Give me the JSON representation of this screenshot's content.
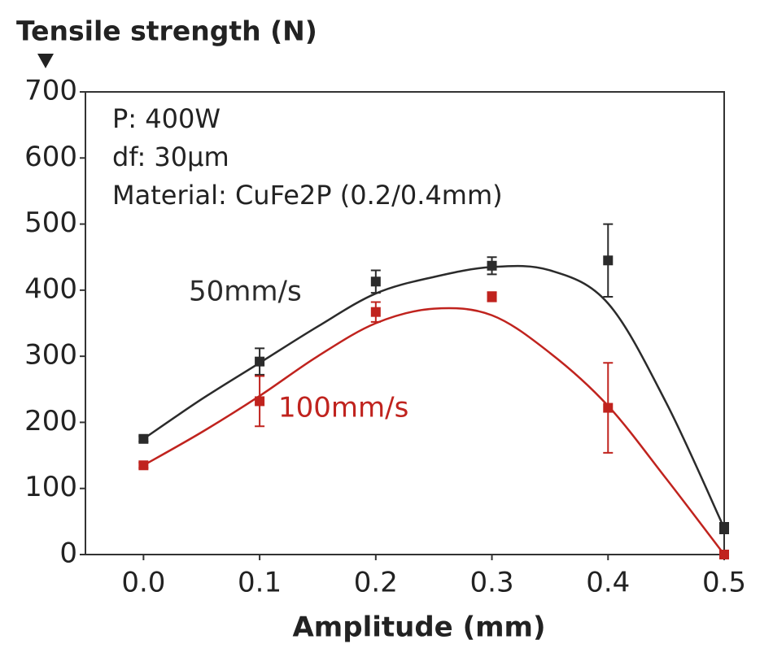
{
  "chart_data": {
    "type": "line",
    "y_label": "Tensile strength (N)",
    "x_label": "Amplitude (mm)",
    "annotations": [
      "P: 400W",
      "df: 30μm",
      "Material: CuFe2P (0.2/0.4mm)"
    ],
    "x": [
      0,
      0.1,
      0.2,
      0.3,
      0.4,
      0.5
    ],
    "series": [
      {
        "name": "50mm/s",
        "color": "#2b2b2b",
        "values": [
          175,
          292,
          413,
          437,
          445,
          40
        ],
        "errors": [
          4,
          20,
          17,
          13,
          55,
          8
        ],
        "fit_x": [
          0,
          0.05,
          0.1,
          0.15,
          0.2,
          0.25,
          0.3,
          0.35,
          0.4,
          0.45,
          0.5
        ],
        "fit": [
          175,
          235,
          290,
          345,
          395,
          420,
          435,
          430,
          380,
          230,
          40
        ]
      },
      {
        "name": "100mm/s",
        "color": "#c0231e",
        "values": [
          135,
          232,
          367,
          390,
          222,
          0
        ],
        "errors": [
          4,
          38,
          15,
          7,
          68,
          0
        ],
        "fit_x": [
          0,
          0.05,
          0.1,
          0.15,
          0.2,
          0.25,
          0.3,
          0.35,
          0.4,
          0.45,
          0.5
        ],
        "fit": [
          135,
          185,
          240,
          300,
          350,
          372,
          362,
          305,
          225,
          115,
          0
        ]
      }
    ],
    "xlim": [
      -0.05,
      0.5
    ],
    "xticks": [
      {
        "value": 0,
        "label": "0.0"
      },
      0.1,
      0.2,
      0.3,
      0.4,
      0.5
    ],
    "ylim": [
      0,
      700
    ],
    "yticks": [
      0,
      100,
      200,
      300,
      400,
      500,
      600,
      700
    ],
    "grid": false
  }
}
